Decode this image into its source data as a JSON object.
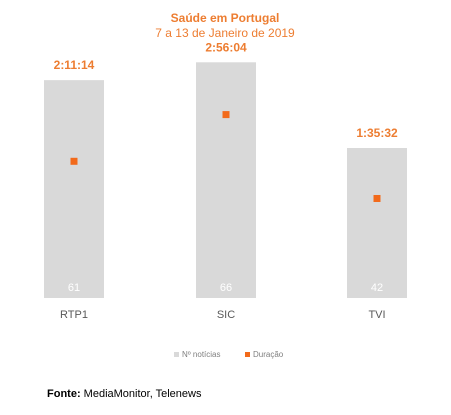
{
  "chart_data": {
    "type": "bar",
    "title": "Saúde em Portugal",
    "subtitle": "7 a 13 de Janeiro de 2019",
    "categories": [
      "RTP1",
      "SIC",
      "TVI"
    ],
    "series": [
      {
        "name": "Nº notícias",
        "type": "bar",
        "values": [
          61,
          66,
          42
        ],
        "color": "#D9D9D9"
      },
      {
        "name": "Duração",
        "type": "scatter",
        "values": [
          "2:11:14",
          "2:56:04",
          "1:35:32"
        ],
        "seconds": [
          7874,
          10564,
          5732
        ],
        "color": "#F26A1B"
      }
    ],
    "bar_ylim": [
      0,
      70
    ],
    "duration_ylim_seconds": [
      0,
      14400
    ],
    "grid": false,
    "legend_position": "bottom"
  },
  "footer": {
    "source_label": "Fonte:",
    "source_text": "MediaMonitor, Telenews"
  }
}
